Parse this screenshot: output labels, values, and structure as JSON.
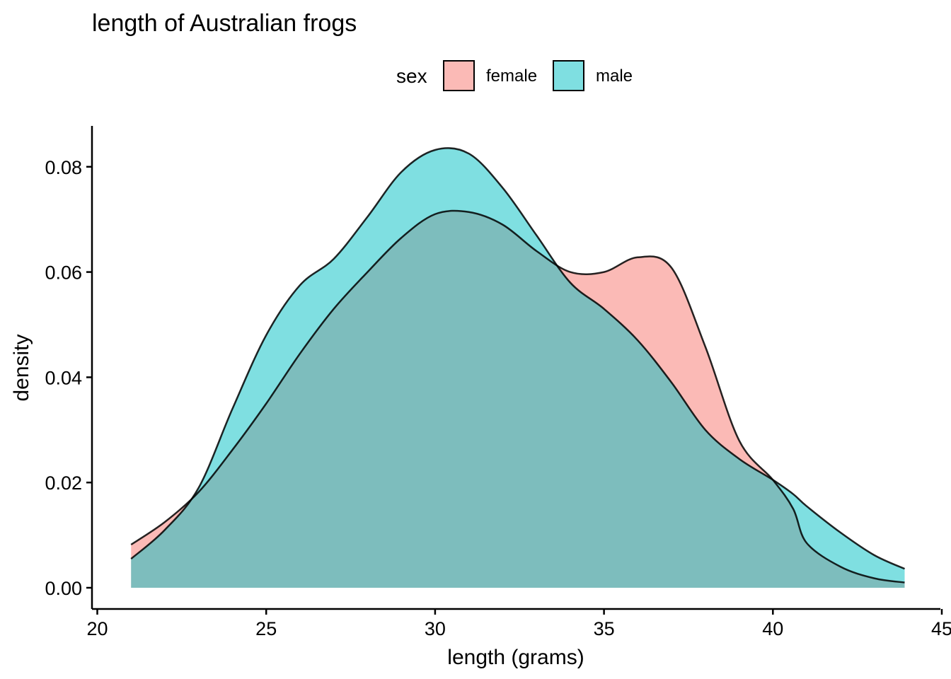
{
  "chart_data": {
    "type": "area",
    "title": "length of Australian frogs",
    "xlabel": "length (grams)",
    "ylabel": "density",
    "xlim": [
      20,
      45
    ],
    "ylim": [
      0,
      0.08
    ],
    "x_ticks": [
      20,
      25,
      30,
      35,
      40,
      45
    ],
    "x_tick_labels": [
      "20",
      "25",
      "30",
      "35",
      "40",
      "45"
    ],
    "y_ticks": [
      0,
      0.02,
      0.04,
      0.06,
      0.08
    ],
    "y_tick_labels": [
      "0.00",
      "0.02",
      "0.04",
      "0.06",
      "0.08"
    ],
    "grid": false,
    "legend": {
      "title": "sex",
      "position": "top",
      "entries": [
        {
          "label": "female",
          "color": "#F8766D"
        },
        {
          "label": "male",
          "color": "#00BFC4"
        }
      ]
    },
    "fill_opacity": 0.5,
    "series": [
      {
        "name": "female",
        "color": "#F8766D",
        "x": [
          21,
          22,
          23,
          24,
          25,
          26,
          27,
          28,
          29,
          30,
          31,
          32,
          33,
          34,
          35,
          36,
          37,
          38,
          39,
          40,
          40.6,
          41,
          42,
          43,
          43.9
        ],
        "y": [
          0.0082,
          0.0125,
          0.0182,
          0.0262,
          0.035,
          0.0445,
          0.053,
          0.06,
          0.0665,
          0.071,
          0.0714,
          0.069,
          0.064,
          0.06,
          0.06,
          0.0628,
          0.0608,
          0.0458,
          0.028,
          0.0205,
          0.015,
          0.0085,
          0.004,
          0.0018,
          0.001
        ]
      },
      {
        "name": "male",
        "color": "#00BFC4",
        "x": [
          21,
          22,
          23,
          24,
          25,
          26,
          27,
          28,
          29,
          30,
          31,
          32,
          33,
          34,
          35,
          36,
          37,
          38,
          39,
          40,
          40.6,
          41,
          42,
          43,
          43.9
        ],
        "y": [
          0.0055,
          0.011,
          0.019,
          0.034,
          0.048,
          0.0575,
          0.0625,
          0.0705,
          0.079,
          0.0832,
          0.0825,
          0.076,
          0.067,
          0.058,
          0.053,
          0.047,
          0.039,
          0.03,
          0.0245,
          0.0205,
          0.0178,
          0.0155,
          0.0105,
          0.0062,
          0.0036
        ]
      }
    ]
  }
}
